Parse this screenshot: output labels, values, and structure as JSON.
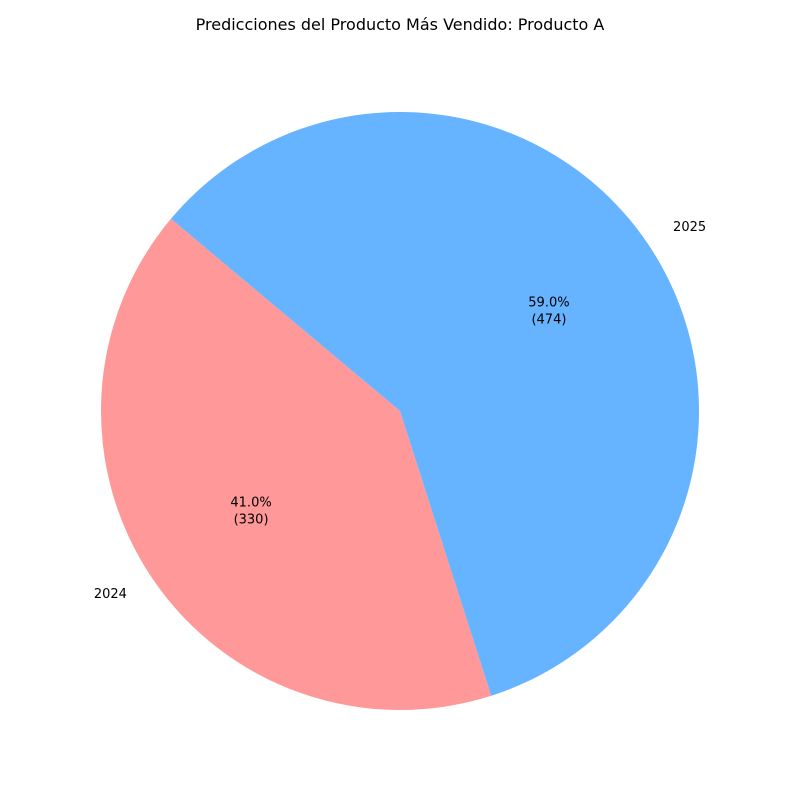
{
  "chart_data": {
    "type": "pie",
    "title": "Predicciones del Producto Más Vendido: Producto A",
    "categories": [
      "2024",
      "2025"
    ],
    "values": [
      330,
      474
    ],
    "percent_labels": [
      "41.0%",
      "59.0%"
    ],
    "value_labels": [
      "(330)",
      "(474)"
    ],
    "colors": [
      "#ff9999",
      "#66b3ff"
    ],
    "start_angle_degrees": 140,
    "direction": "counterclockwise",
    "legend": "none"
  }
}
